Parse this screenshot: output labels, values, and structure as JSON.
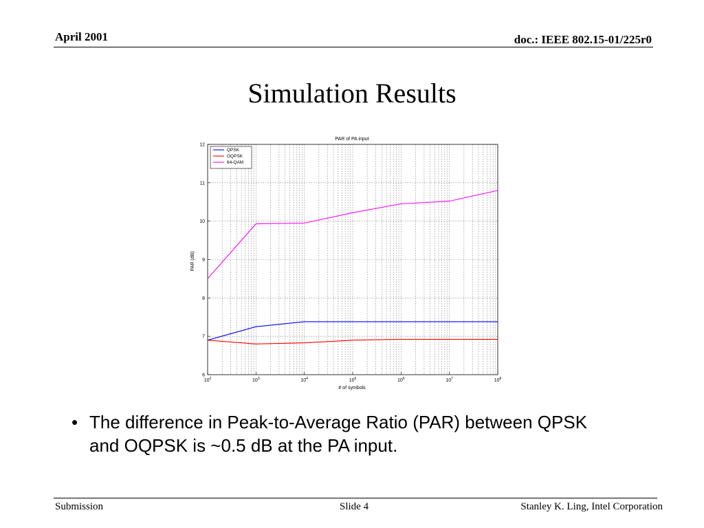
{
  "header": {
    "left": "April 2001",
    "right": "doc.: IEEE 802.15-01/225r0"
  },
  "slide_title": "Simulation Results",
  "chart_data": {
    "type": "line",
    "title": "PAR of PA input",
    "xlabel": "# of symbols",
    "ylabel": "PAR (dB)",
    "xscale": "log",
    "xlim": [
      100,
      100000000
    ],
    "ylim": [
      6,
      12
    ],
    "x_ticks": [
      {
        "value": 100,
        "base": "10",
        "exp": "2"
      },
      {
        "value": 1000,
        "base": "10",
        "exp": "3"
      },
      {
        "value": 10000,
        "base": "10",
        "exp": "4"
      },
      {
        "value": 100000,
        "base": "10",
        "exp": "5"
      },
      {
        "value": 1000000,
        "base": "10",
        "exp": "6"
      },
      {
        "value": 10000000,
        "base": "10",
        "exp": "7"
      },
      {
        "value": 100000000,
        "base": "10",
        "exp": "8"
      }
    ],
    "y_ticks": [
      "6",
      "7",
      "8",
      "9",
      "10",
      "11",
      "12"
    ],
    "grid": true,
    "legend_position": "top-left",
    "x": [
      100,
      1000,
      10000,
      100000,
      1000000,
      10000000,
      100000000
    ],
    "series": [
      {
        "name": "QPSK",
        "color": "#0000ff",
        "values": [
          6.9,
          7.25,
          7.38,
          7.38,
          7.38,
          7.38,
          7.38
        ]
      },
      {
        "name": "OQPSK",
        "color": "#ff0000",
        "values": [
          6.9,
          6.8,
          6.83,
          6.9,
          6.92,
          6.92,
          6.92
        ]
      },
      {
        "name": "64-QAM",
        "color": "#ff00ff",
        "values": [
          8.5,
          9.93,
          9.95,
          10.22,
          10.45,
          10.52,
          10.8
        ]
      }
    ]
  },
  "bullets": [
    {
      "marker": "•",
      "text": "The difference in Peak-to-Average Ratio (PAR) between QPSK and OQPSK is ~0.5 dB at the PA input."
    }
  ],
  "footer": {
    "left": "Submission",
    "center": "Slide 4",
    "right": "Stanley K. Ling, Intel Corporation"
  }
}
